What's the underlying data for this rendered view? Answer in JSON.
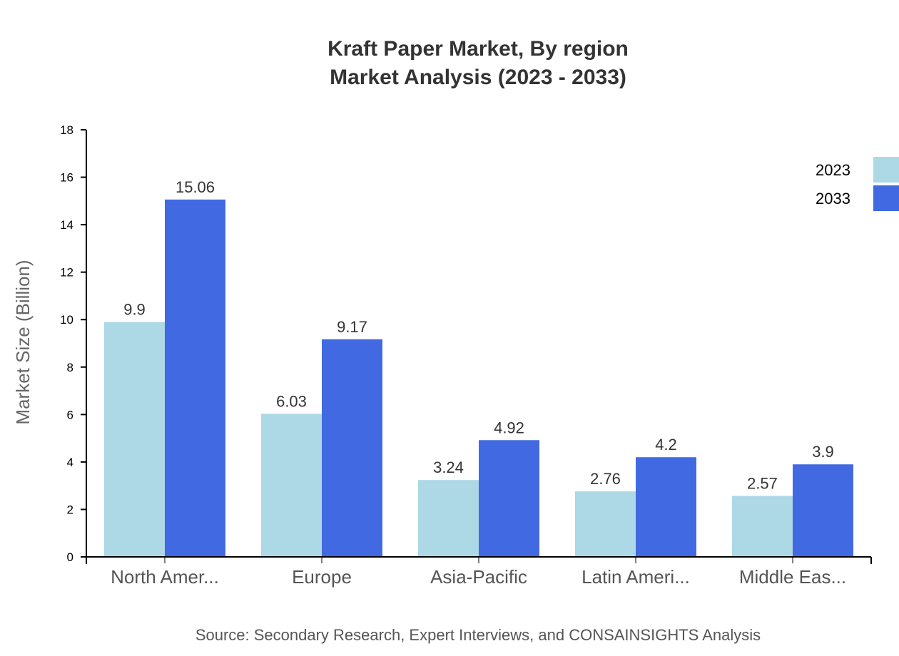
{
  "title_line1": "Kraft Paper Market, By region",
  "title_line2": "Market Analysis (2023 - 2033)",
  "source": "Source: Secondary Research, Expert Interviews, and CONSAINSIGHTS Analysis",
  "colors": {
    "series_2023": "#add8e6",
    "series_2033": "#4169e1"
  },
  "chart_data": {
    "type": "bar",
    "title": "Kraft Paper Market, By region Market Analysis (2023 - 2033)",
    "xlabel": "",
    "ylabel": "Market Size (Billion)",
    "ylim": [
      0,
      18
    ],
    "yticks": [
      0,
      2,
      4,
      6,
      8,
      10,
      12,
      14,
      16,
      18
    ],
    "categories": [
      "North Amer...",
      "Europe",
      "Asia-Pacific",
      "Latin Ameri...",
      "Middle Eas..."
    ],
    "series": [
      {
        "name": "2023",
        "color": "#add8e6",
        "values": [
          9.9,
          6.03,
          3.24,
          2.76,
          2.57
        ]
      },
      {
        "name": "2033",
        "color": "#4169e1",
        "values": [
          15.06,
          9.17,
          4.92,
          4.2,
          3.9
        ]
      }
    ],
    "legend": {
      "position": "top-right",
      "entries": [
        "2023",
        "2033"
      ]
    },
    "grid": false
  }
}
